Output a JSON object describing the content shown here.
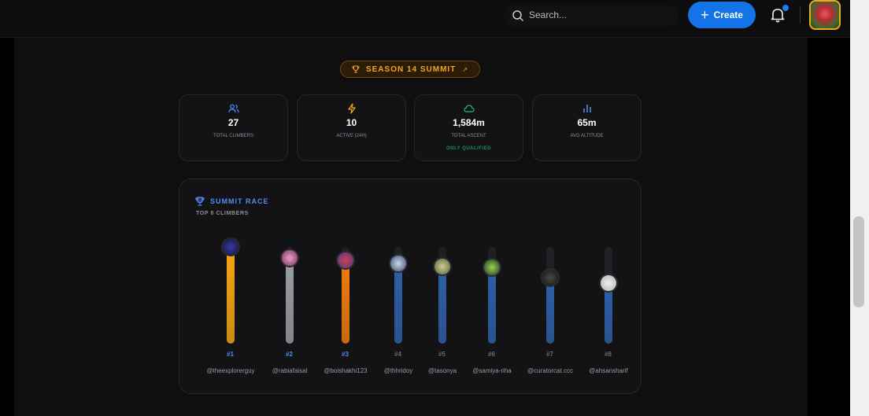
{
  "header": {
    "search_placeholder": "Search...",
    "create_label": "Create",
    "create_icon": "plus-icon",
    "notification_icon": "bell-icon",
    "has_notification": true
  },
  "season": {
    "label": "SEASON 14 SUMMIT",
    "icon": "trophy-icon",
    "link_icon": "arrow-up-right-icon"
  },
  "stats": [
    {
      "icon": "users-icon",
      "value": "27",
      "label": "TOTAL CLIMBERS",
      "sub": ""
    },
    {
      "icon": "bolt-icon",
      "value": "10",
      "label": "ACTIVE (24H)",
      "sub": ""
    },
    {
      "icon": "cloud-icon",
      "value": "1,584m",
      "label": "TOTAL ASCENT",
      "sub": "ONLY QUALIFIED"
    },
    {
      "icon": "bar-chart-icon",
      "value": "65m",
      "label": "AVG ALTITUDE",
      "sub": ""
    }
  ],
  "race": {
    "title": "SUMMIT RACE",
    "subtitle": "TOP 8 CLIMBERS",
    "icon": "trophy-icon",
    "climbers": [
      {
        "rank": "#1",
        "user": "@theexplorerguy",
        "level": 1.0,
        "color": "#f5a70f"
      },
      {
        "rank": "#2",
        "user": "@rabiafaisal",
        "level": 0.89,
        "color": "#9c9ca3"
      },
      {
        "rank": "#3",
        "user": "@boishakhi123",
        "level": 0.86,
        "color": "#f27b0c"
      },
      {
        "rank": "#4",
        "user": "@thhridoy",
        "level": 0.83,
        "color": "#2d5fa8"
      },
      {
        "rank": "#5",
        "user": "@tasonya",
        "level": 0.8,
        "color": "#2d5fa8"
      },
      {
        "rank": "#6",
        "user": "@samiya-riha",
        "level": 0.79,
        "color": "#2d5fa8"
      },
      {
        "rank": "#7",
        "user": "@curatorcat.ccc",
        "level": 0.68,
        "color": "#2d5fa8"
      },
      {
        "rank": "#8",
        "user": "@ahsansharif",
        "level": 0.63,
        "color": "#2d5fa8"
      }
    ]
  },
  "colors": {
    "accent": "#1473e6",
    "gold": "#f5a524",
    "qualified": "#1c8f55"
  }
}
